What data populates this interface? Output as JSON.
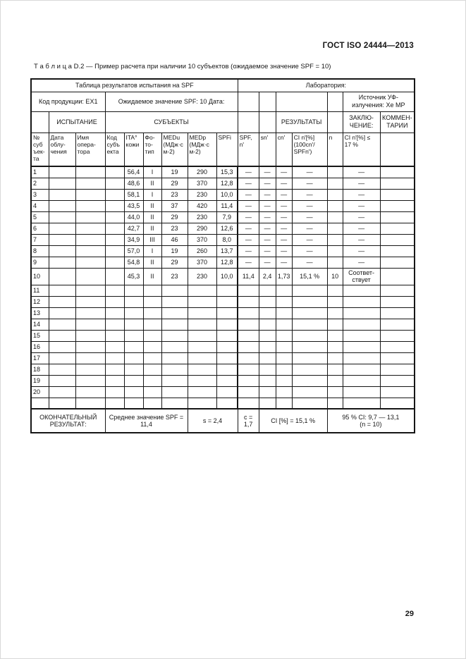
{
  "page": {
    "doc_ref": "ГОСТ ISO 24444—2013",
    "caption": "Т а б л и ц а  D.2 — Пример расчета при наличии 10 субъектов (ожидаемое значение SPF = 10)",
    "page_number": "29"
  },
  "table": {
    "section_headers": {
      "results_table": "Таблица результатов испытания на SPF",
      "laboratory": "Лаборатория:",
      "product_code": "Код продукции: EX1",
      "expected_spf_date": "Ожидаемое значение SPF: 10 Дата:",
      "uv_source": "Источник УФ-\nизлучения: Xe МР",
      "test": "ИСПЫТАНИЕ",
      "subjects": "СУБЪЕКТЫ",
      "results": "РЕЗУЛЬТАТЫ",
      "conclusion": "ЗАКЛЮ-\nЧЕНИЕ:",
      "comments": "КОММЕН-\nТАРИИ"
    },
    "columns": [
      "№\nсуб\nъек-\nта",
      "Дата\nоблу-\nчения",
      "Имя\nопера-\nтора",
      "Код\nсубъ\nекта",
      "ITA°\nкожи",
      "Фо-\nто-\nтип",
      "MEDu\n(МДж·с\nм-2)",
      "MEDp\n(МДж·с\nм-2)",
      "SPFi",
      "SPF,\nn'",
      "sn'",
      "cn'",
      "CI n'[%]\n(100cn'/\nSPFn')",
      "n",
      "CI n'[%] ≤\n17 %",
      ""
    ],
    "body_rows": [
      [
        "1",
        "",
        "",
        "",
        "56,4",
        "I",
        "19",
        "290",
        "15,3",
        "—",
        "—",
        "—",
        "—",
        "",
        "—",
        ""
      ],
      [
        "2",
        "",
        "",
        "",
        "48,6",
        "II",
        "29",
        "370",
        "12,8",
        "—",
        "—",
        "—",
        "—",
        "",
        "—",
        ""
      ],
      [
        "3",
        "",
        "",
        "",
        "58,1",
        "I",
        "23",
        "230",
        "10,0",
        "—",
        "—",
        "—",
        "—",
        "",
        "—",
        ""
      ],
      [
        "4",
        "",
        "",
        "",
        "43,5",
        "II",
        "37",
        "420",
        "11,4",
        "—",
        "—",
        "—",
        "—",
        "",
        "—",
        ""
      ],
      [
        "5",
        "",
        "",
        "",
        "44,0",
        "II",
        "29",
        "230",
        "7,9",
        "—",
        "—",
        "—",
        "—",
        "",
        "—",
        ""
      ],
      [
        "6",
        "",
        "",
        "",
        "42,7",
        "II",
        "23",
        "290",
        "12,6",
        "—",
        "—",
        "—",
        "—",
        "",
        "—",
        ""
      ],
      [
        "7",
        "",
        "",
        "",
        "34,9",
        "III",
        "46",
        "370",
        "8,0",
        "—",
        "—",
        "—",
        "—",
        "",
        "—",
        ""
      ],
      [
        "8",
        "",
        "",
        "",
        "57,0",
        "I",
        "19",
        "260",
        "13,7",
        "—",
        "—",
        "—",
        "—",
        "",
        "—",
        ""
      ],
      [
        "9",
        "",
        "",
        "",
        "54,8",
        "II",
        "29",
        "370",
        "12,8",
        "—",
        "—",
        "—",
        "—",
        "",
        "—",
        ""
      ],
      [
        "10",
        "",
        "",
        "",
        "45,3",
        "II",
        "23",
        "230",
        "10,0",
        "11,4",
        "2,4",
        "1,73",
        "15,1 %",
        "10",
        "Соответ-\nствует",
        ""
      ],
      [
        "11",
        "",
        "",
        "",
        "",
        "",
        "",
        "",
        "",
        "",
        "",
        "",
        "",
        "",
        "",
        ""
      ],
      [
        "12",
        "",
        "",
        "",
        "",
        "",
        "",
        "",
        "",
        "",
        "",
        "",
        "",
        "",
        "",
        ""
      ],
      [
        "13",
        "",
        "",
        "",
        "",
        "",
        "",
        "",
        "",
        "",
        "",
        "",
        "",
        "",
        "",
        ""
      ],
      [
        "14",
        "",
        "",
        "",
        "",
        "",
        "",
        "",
        "",
        "",
        "",
        "",
        "",
        "",
        "",
        ""
      ],
      [
        "15",
        "",
        "",
        "",
        "",
        "",
        "",
        "",
        "",
        "",
        "",
        "",
        "",
        "",
        "",
        ""
      ],
      [
        "16",
        "",
        "",
        "",
        "",
        "",
        "",
        "",
        "",
        "",
        "",
        "",
        "",
        "",
        "",
        ""
      ],
      [
        "17",
        "",
        "",
        "",
        "",
        "",
        "",
        "",
        "",
        "",
        "",
        "",
        "",
        "",
        "",
        ""
      ],
      [
        "18",
        "",
        "",
        "",
        "",
        "",
        "",
        "",
        "",
        "",
        "",
        "",
        "",
        "",
        "",
        ""
      ],
      [
        "19",
        "",
        "",
        "",
        "",
        "",
        "",
        "",
        "",
        "",
        "",
        "",
        "",
        "",
        "",
        ""
      ],
      [
        "20",
        "",
        "",
        "",
        "",
        "",
        "",
        "",
        "",
        "",
        "",
        "",
        "",
        "",
        "",
        ""
      ],
      [
        "",
        "",
        "",
        "",
        "",
        "",
        "",
        "",
        "",
        "",
        "",
        "",
        "",
        "",
        "",
        ""
      ]
    ],
    "footer_cells": [
      {
        "text": "ОКОНЧАТЕЛЬНЫЙ\nРЕЗУЛЬТАТ:",
        "colspan": 3
      },
      {
        "text": "Среднее значение SPF =\n11,4",
        "colspan": 4
      },
      {
        "text": "s = 2,4",
        "colspan": 2
      },
      {
        "text": "c = 1,7",
        "colspan": 1
      },
      {
        "text": "CI [%] = 15,1 %",
        "colspan": 3
      },
      {
        "text": "95 % CI: 9,7 — 13,1\n(n = 10)",
        "colspan": 3
      }
    ]
  }
}
